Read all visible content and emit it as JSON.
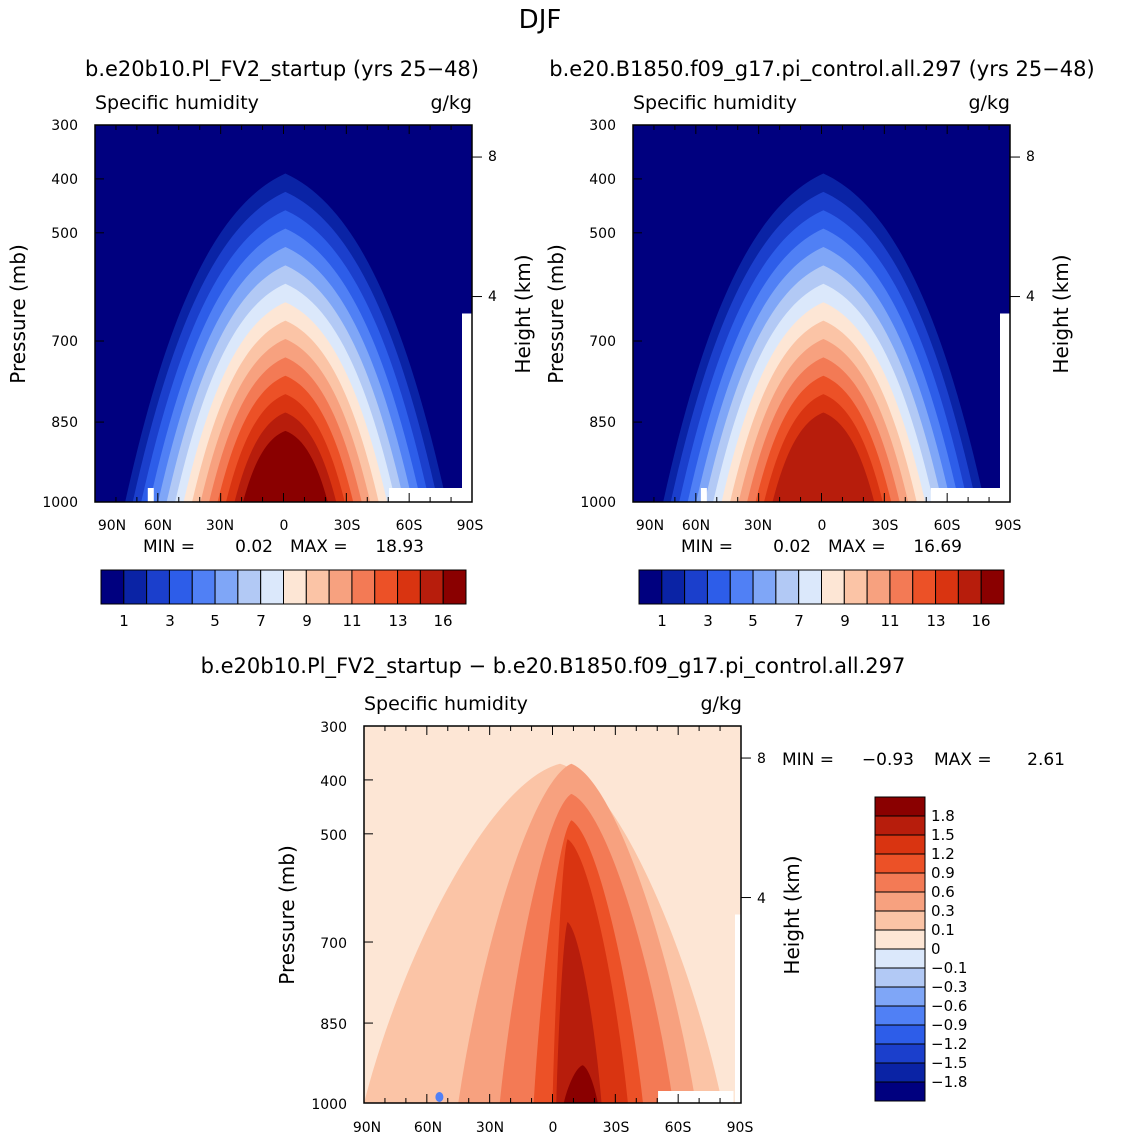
{
  "figure": {
    "title": "DJF",
    "diff_title": "b.e20b10.Pl_FV2_startup − b.e20.B1850.f09_g17.pi_control.all.297"
  },
  "chart_data": [
    {
      "type": "heatmap",
      "title": "b.e20b10.Pl_FV2_startup (yrs 25−48)",
      "left_label": "Specific humidity",
      "units": "g/kg",
      "ylabel": "Pressure (mb)",
      "ylabel_right": "Height (km)",
      "x_ticks": [
        "90N",
        "60N",
        "30N",
        "0",
        "30S",
        "60S",
        "90S"
      ],
      "y_ticks": [
        "300",
        "400",
        "500",
        "700",
        "850",
        "1000"
      ],
      "height_ticks": [
        "8",
        "4"
      ],
      "min_text": "MIN =",
      "min_value": "0.02",
      "max_text": "MAX =",
      "max_value": "18.93",
      "peak": 18.93,
      "colorbar_labels": [
        "1",
        "3",
        "5",
        "7",
        "9",
        "11",
        "13",
        "16"
      ]
    },
    {
      "type": "heatmap",
      "title": "b.e20.B1850.f09_g17.pi_control.all.297 (yrs 25−48)",
      "left_label": "Specific humidity",
      "units": "g/kg",
      "ylabel": "Pressure (mb)",
      "ylabel_right": "Height (km)",
      "x_ticks": [
        "90N",
        "60N",
        "30N",
        "0",
        "30S",
        "60S",
        "90S"
      ],
      "y_ticks": [
        "300",
        "400",
        "500",
        "700",
        "850",
        "1000"
      ],
      "height_ticks": [
        "8",
        "4"
      ],
      "min_text": "MIN =",
      "min_value": "0.02",
      "max_text": "MAX =",
      "max_value": "16.69",
      "peak": 16.69,
      "colorbar_labels": [
        "1",
        "3",
        "5",
        "7",
        "9",
        "11",
        "13",
        "16"
      ]
    },
    {
      "type": "heatmap",
      "title": "b.e20b10.Pl_FV2_startup − b.e20.B1850.f09_g17.pi_control.all.297",
      "left_label": "Specific humidity",
      "units": "g/kg",
      "ylabel": "Pressure (mb)",
      "ylabel_right": "Height (km)",
      "x_ticks": [
        "90N",
        "60N",
        "30N",
        "0",
        "30S",
        "60S",
        "90S"
      ],
      "y_ticks": [
        "300",
        "400",
        "500",
        "700",
        "850",
        "1000"
      ],
      "height_ticks": [
        "8",
        "4"
      ],
      "min_text": "MIN =",
      "min_value": "−0.93",
      "max_text": "MAX =",
      "max_value": "2.61",
      "colorbar_labels": [
        "1.8",
        "1.5",
        "1.2",
        "0.9",
        "0.6",
        "0.3",
        "0.1",
        "0",
        "−0.1",
        "−0.3",
        "−0.6",
        "−0.9",
        "−1.2",
        "−1.5",
        "−1.8"
      ]
    }
  ],
  "palettes": {
    "humidity": [
      "#00007f",
      "#0a23a5",
      "#1b3fcc",
      "#2d5de9",
      "#5080f5",
      "#7fa6f7",
      "#b2c9f5",
      "#dbe8fb",
      "#fde6d5",
      "#fbc4a6",
      "#f7a17f",
      "#f37a55",
      "#ec5127",
      "#d93411",
      "#b71d0c",
      "#8a0000"
    ],
    "diff_top_to_bottom": [
      "#8a0000",
      "#b71d0c",
      "#d93411",
      "#ec5127",
      "#f37a55",
      "#f7a17f",
      "#fbc4a6",
      "#fde6d5",
      "#dbe8fb",
      "#b2c9f5",
      "#7fa6f7",
      "#5080f5",
      "#2d5de9",
      "#1b3fcc",
      "#0a23a5",
      "#00007f"
    ]
  }
}
